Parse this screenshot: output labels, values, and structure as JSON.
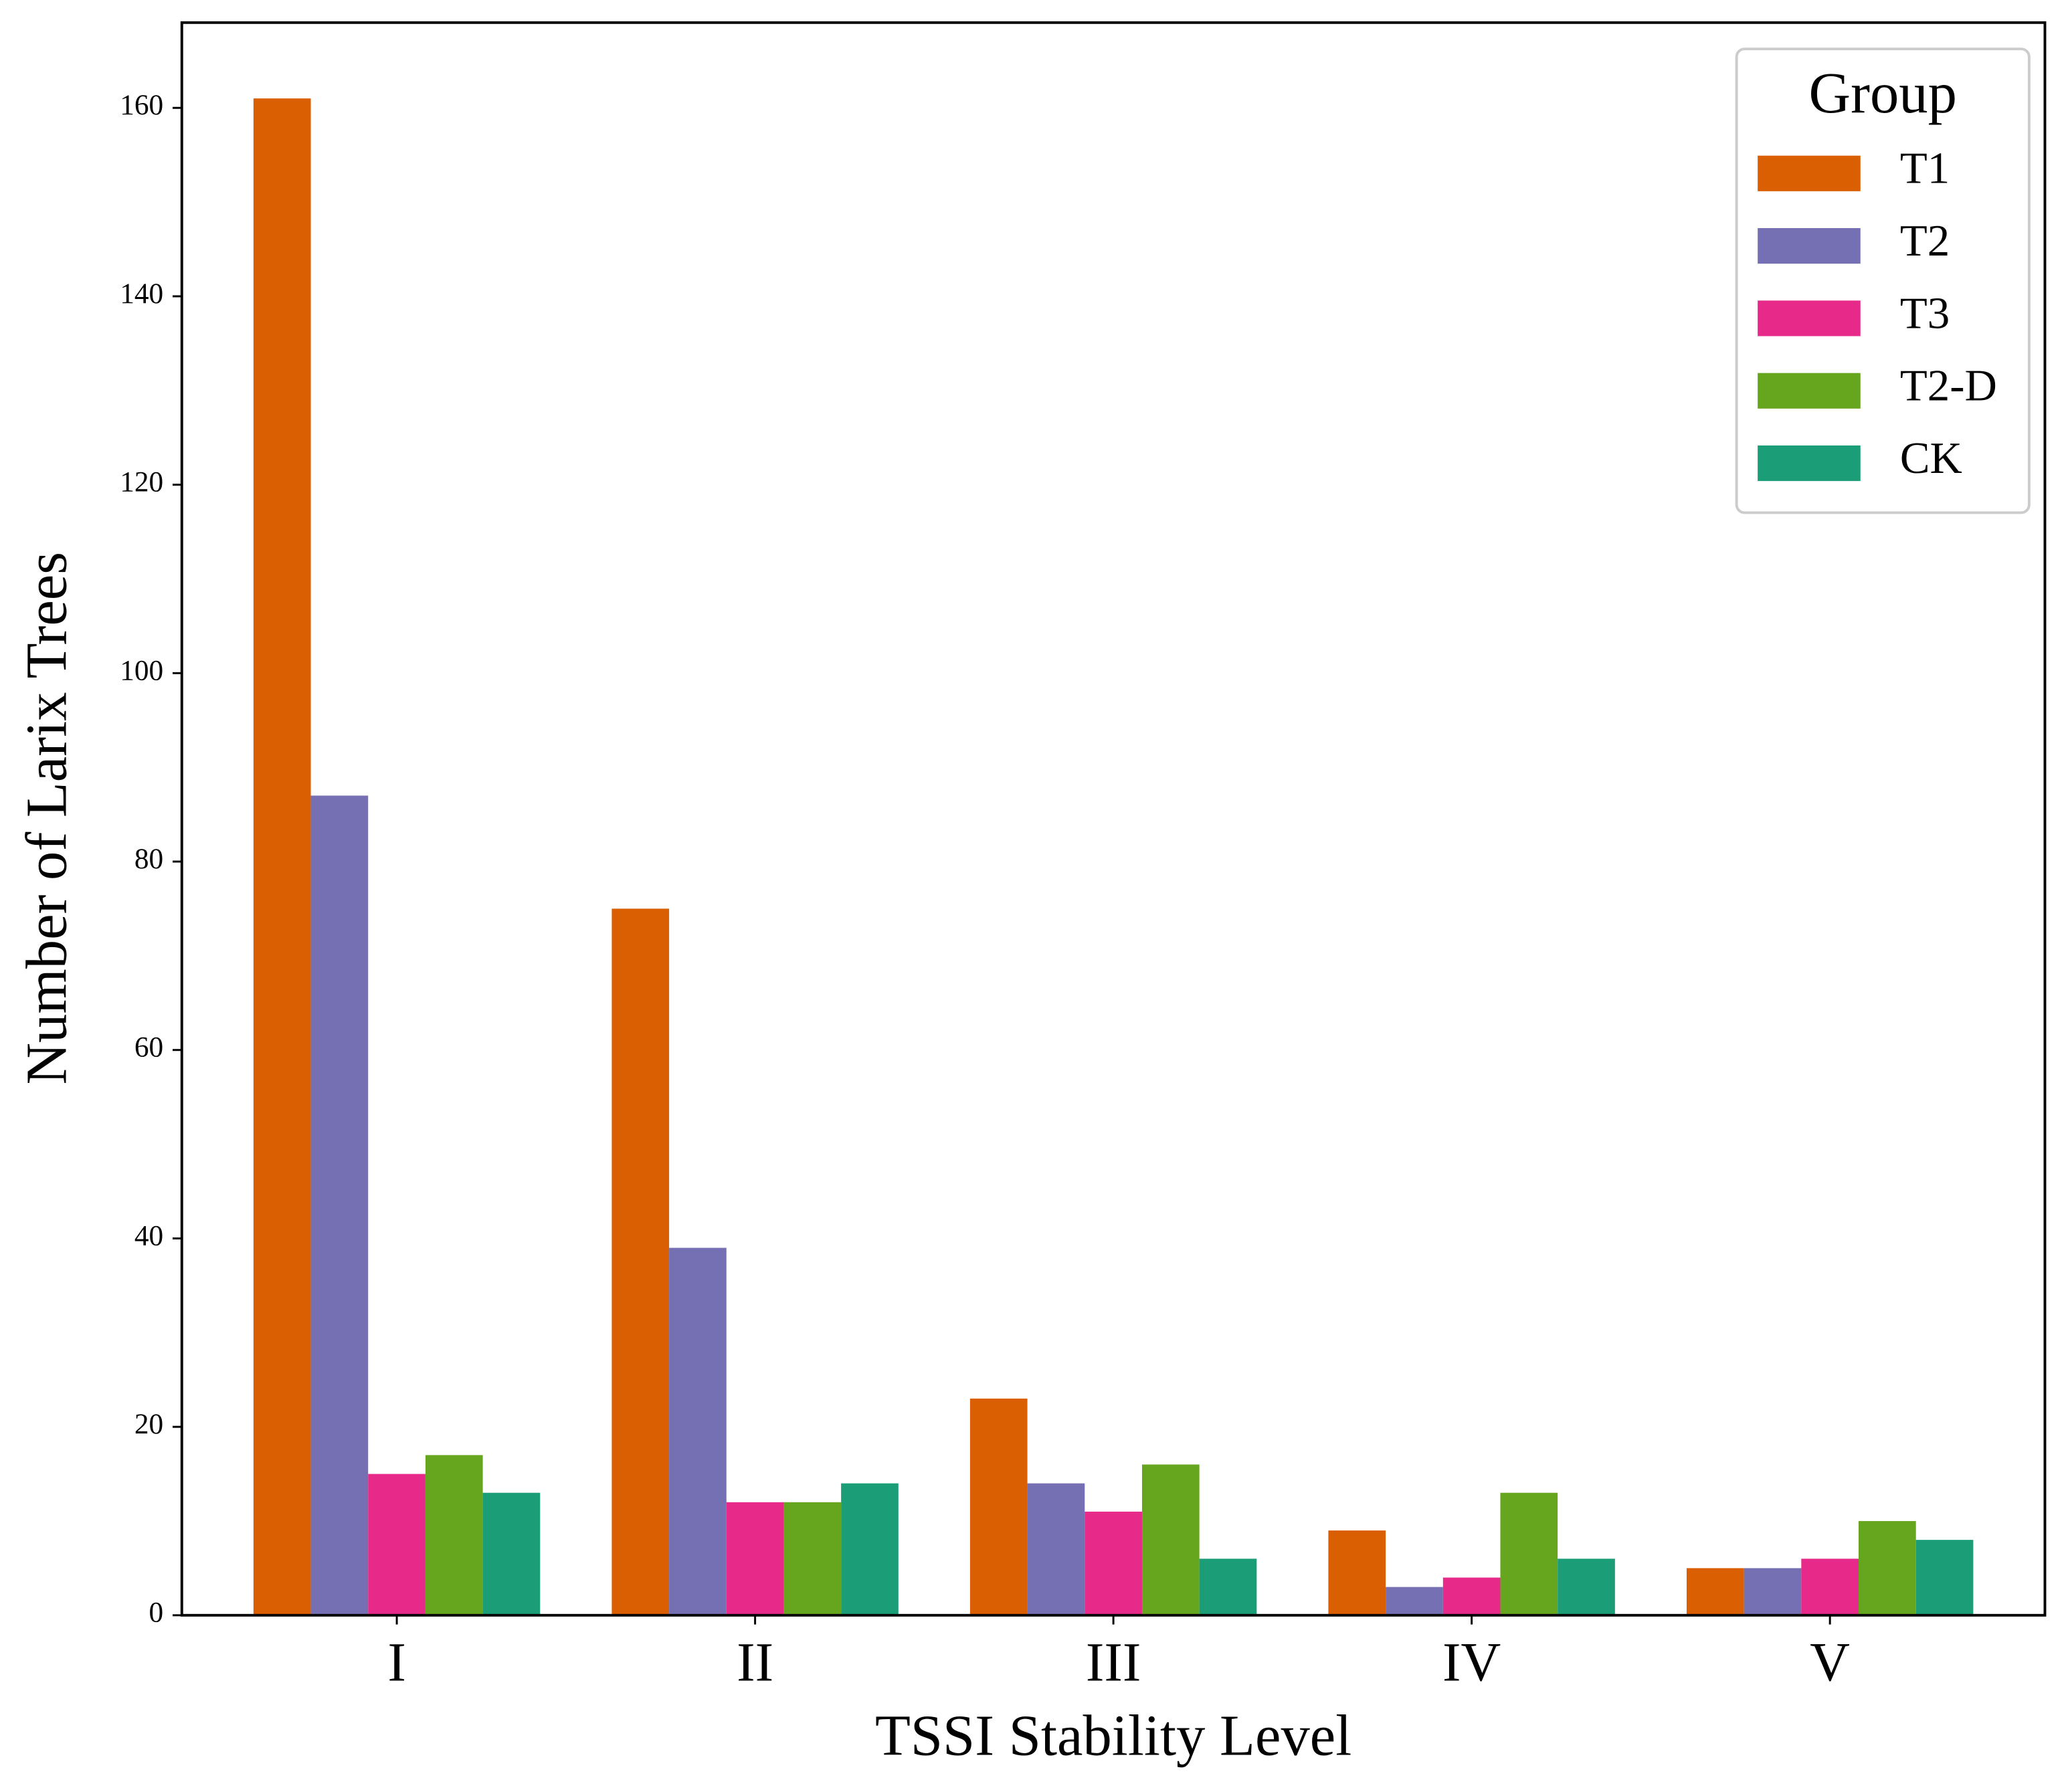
{
  "chart_data": {
    "type": "bar",
    "x_label": "TSSI Stability Level",
    "y_label": "Number of Larix Trees",
    "categories": [
      "I",
      "II",
      "III",
      "IV",
      "V"
    ],
    "series": [
      {
        "name": "T1",
        "color": "#d95f02",
        "values": [
          161,
          75,
          23,
          9,
          5
        ]
      },
      {
        "name": "T2",
        "color": "#7570b3",
        "values": [
          87,
          39,
          14,
          3,
          5
        ]
      },
      {
        "name": "T3",
        "color": "#e7298a",
        "values": [
          15,
          12,
          11,
          4,
          6
        ]
      },
      {
        "name": "T2-D",
        "color": "#66a61e",
        "values": [
          17,
          12,
          16,
          13,
          10
        ]
      },
      {
        "name": "CK",
        "color": "#1b9e77",
        "values": [
          13,
          14,
          6,
          6,
          8
        ]
      }
    ],
    "legend_title": "Group",
    "legend": "upper right",
    "ylim": [
      0,
      169.05
    ],
    "yticks": [
      0,
      20,
      40,
      60,
      80,
      100,
      120,
      140,
      160
    ]
  }
}
